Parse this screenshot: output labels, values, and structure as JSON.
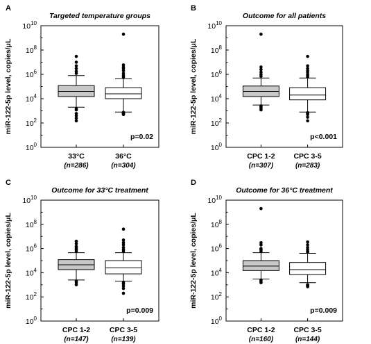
{
  "chart_data": [
    {
      "type": "box",
      "panel_letter": "A",
      "title": "Targeted temperature groups",
      "ylabel": "miR-122-5p level, copies/μL",
      "yscale": "log10",
      "ylim": [
        1,
        10000000000
      ],
      "yticks": [
        {
          "value": 1,
          "base": "10",
          "exp": "0"
        },
        {
          "value": 100,
          "base": "10",
          "exp": "2"
        },
        {
          "value": 10000,
          "base": "10",
          "exp": "4"
        },
        {
          "value": 1000000,
          "base": "10",
          "exp": "6"
        },
        {
          "value": 100000000,
          "base": "10",
          "exp": "8"
        },
        {
          "value": 10000000000,
          "base": "10",
          "exp": "10"
        }
      ],
      "p_value": "p=0.02",
      "groups": [
        {
          "label": "33°C",
          "n": "(n=286)",
          "fill": "#c8c8c8",
          "box": {
            "whisker_low": 2000,
            "q1": 15000,
            "median": 40000,
            "q3": 120000,
            "whisker_high": 800000
          },
          "outliers": [
            150,
            250,
            400,
            600,
            1200,
            1500,
            1200000,
            1800000,
            3000000,
            5000000,
            10000000,
            30000000
          ]
        },
        {
          "label": "36°C",
          "n": "(n=304)",
          "fill": "#ffffff",
          "box": {
            "whisker_low": 800,
            "q1": 10000,
            "median": 25000,
            "q3": 80000,
            "whisker_high": 450000
          },
          "outliers": [
            600,
            500,
            700,
            550,
            650,
            750,
            600000,
            800000,
            1200000,
            2000000,
            3000000,
            4000000,
            6000000,
            2000000000
          ]
        }
      ]
    },
    {
      "type": "box",
      "panel_letter": "B",
      "title": "Outcome for all patients",
      "ylabel": "miR-122-5p level, copies/μL",
      "yscale": "log10",
      "ylim": [
        1,
        10000000000
      ],
      "yticks": [
        {
          "value": 1,
          "base": "10",
          "exp": "0"
        },
        {
          "value": 100,
          "base": "10",
          "exp": "2"
        },
        {
          "value": 10000,
          "base": "10",
          "exp": "4"
        },
        {
          "value": 1000000,
          "base": "10",
          "exp": "6"
        },
        {
          "value": 100000000,
          "base": "10",
          "exp": "8"
        },
        {
          "value": 10000000000,
          "base": "10",
          "exp": "10"
        }
      ],
      "p_value": "p<0.001",
      "groups": [
        {
          "label": "CPC 1-2",
          "n": "(n=307)",
          "fill": "#c8c8c8",
          "box": {
            "whisker_low": 3000,
            "q1": 15000,
            "median": 40000,
            "q3": 110000,
            "whisker_high": 500000
          },
          "outliers": [
            1500,
            2000,
            2500,
            1200,
            700000,
            1000000,
            1500000,
            2500000,
            4000000,
            2000000000
          ]
        },
        {
          "label": "CPC 3-5",
          "n": "(n=283)",
          "fill": "#ffffff",
          "box": {
            "whisker_low": 800,
            "q1": 8000,
            "median": 20000,
            "q3": 80000,
            "whisker_high": 500000
          },
          "outliers": [
            150,
            300,
            600,
            500,
            700,
            600000,
            800000,
            1000000,
            1500000,
            2000000,
            3000000,
            5000000,
            30000000
          ]
        }
      ]
    },
    {
      "type": "box",
      "panel_letter": "C",
      "title": "Outcome for 33°C treatment",
      "ylabel": "miR-122-5p level, copies/μL",
      "yscale": "log10",
      "ylim": [
        1,
        10000000000
      ],
      "yticks": [
        {
          "value": 1,
          "base": "10",
          "exp": "0"
        },
        {
          "value": 100,
          "base": "10",
          "exp": "2"
        },
        {
          "value": 10000,
          "base": "10",
          "exp": "4"
        },
        {
          "value": 1000000,
          "base": "10",
          "exp": "6"
        },
        {
          "value": 100000000,
          "base": "10",
          "exp": "8"
        },
        {
          "value": 10000000000,
          "base": "10",
          "exp": "10"
        }
      ],
      "p_value": "p=0.009",
      "groups": [
        {
          "label": "CPC 1-2",
          "n": "(n=147)",
          "fill": "#c8c8c8",
          "box": {
            "whisker_low": 2500,
            "q1": 18000,
            "median": 45000,
            "q3": 120000,
            "whisker_high": 450000
          },
          "outliers": [
            1000,
            1500,
            2000,
            600000,
            800000,
            1100000,
            1500000,
            2500000,
            4000000
          ]
        },
        {
          "label": "CPC 3-5",
          "n": "(n=139)",
          "fill": "#ffffff",
          "box": {
            "whisker_low": 2000,
            "q1": 8000,
            "median": 25000,
            "q3": 100000,
            "whisker_high": 450000
          },
          "outliers": [
            200,
            500,
            800,
            1200,
            1500,
            600000,
            800000,
            1200000,
            2000000,
            3000000,
            5000000,
            40000000
          ]
        }
      ]
    },
    {
      "type": "box",
      "panel_letter": "D",
      "title": "Outcome for 36°C treatment",
      "ylabel": "miR-122-5p level, copies/μL",
      "yscale": "log10",
      "ylim": [
        1,
        10000000000
      ],
      "yticks": [
        {
          "value": 1,
          "base": "10",
          "exp": "0"
        },
        {
          "value": 100,
          "base": "10",
          "exp": "2"
        },
        {
          "value": 10000,
          "base": "10",
          "exp": "4"
        },
        {
          "value": 1000000,
          "base": "10",
          "exp": "6"
        },
        {
          "value": 100000000,
          "base": "10",
          "exp": "8"
        },
        {
          "value": 10000000000,
          "base": "10",
          "exp": "10"
        }
      ],
      "p_value": "p=0.009",
      "groups": [
        {
          "label": "CPC 1-2",
          "n": "(n=160)",
          "fill": "#c8c8c8",
          "box": {
            "whisker_low": 3000,
            "q1": 15000,
            "median": 35000,
            "q3": 100000,
            "whisker_high": 450000
          },
          "outliers": [
            1500,
            2000,
            2500,
            600000,
            800000,
            1000000,
            2000000,
            3000000,
            2000000000
          ]
        },
        {
          "label": "CPC 3-5",
          "n": "(n=144)",
          "fill": "#ffffff",
          "box": {
            "whisker_low": 1500,
            "q1": 7000,
            "median": 18000,
            "q3": 70000,
            "whisker_high": 400000
          },
          "outliers": [
            700,
            800,
            900,
            1000,
            500000,
            600000,
            800000,
            1200000,
            2000000,
            3500000
          ]
        }
      ]
    }
  ]
}
